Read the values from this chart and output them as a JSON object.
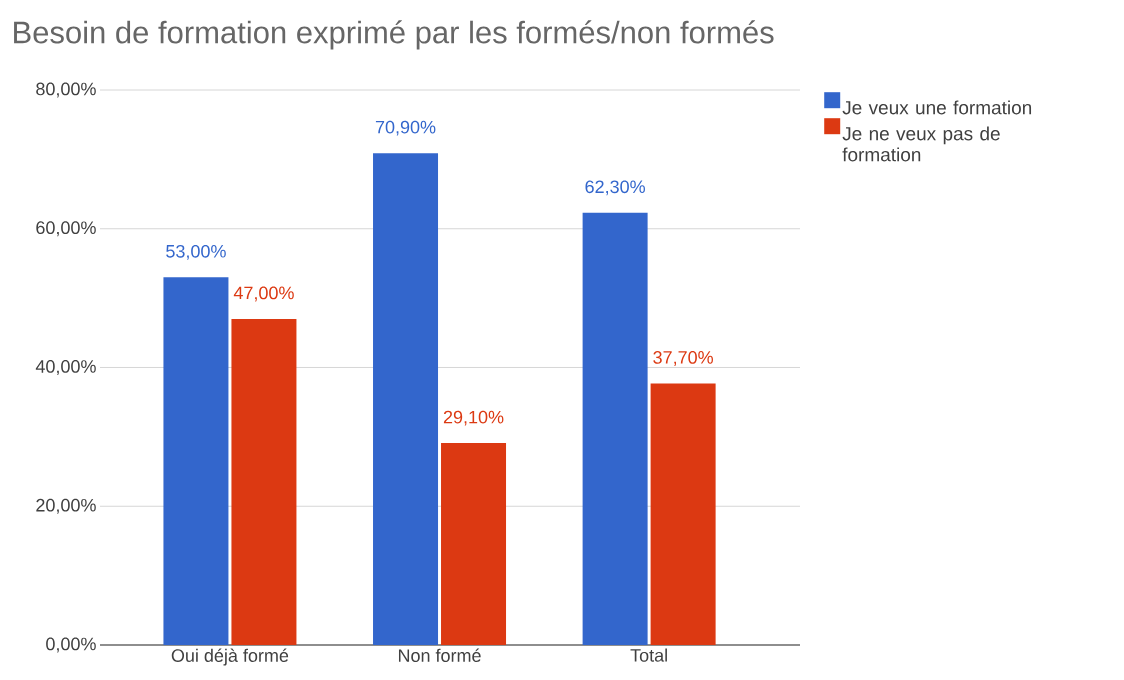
{
  "chart_data": {
    "type": "bar",
    "title": "Besoin de formation exprimé par les formés/non formés",
    "categories": [
      "Oui déjà formé",
      "Non formé",
      "Total"
    ],
    "series": [
      {
        "name": "Je veux une formation",
        "color": "#3366cc",
        "values": [
          53.0,
          70.9,
          62.3
        ],
        "value_labels": [
          "53,00%",
          "70,90%",
          "62,30%"
        ]
      },
      {
        "name": "Je ne veux pas de formation",
        "color": "#dc3912",
        "values": [
          47.0,
          29.1,
          37.7
        ],
        "value_labels": [
          "47,00%",
          "29,10%",
          "37,70%"
        ]
      }
    ],
    "ylim": [
      0,
      80
    ],
    "yticks": [
      {
        "value": 0,
        "label": "0,00%"
      },
      {
        "value": 20,
        "label": "20,00%"
      },
      {
        "value": 40,
        "label": "40,00%"
      },
      {
        "value": 60,
        "label": "60,00%"
      },
      {
        "value": 80,
        "label": "80,00%"
      }
    ],
    "grid": "y",
    "legend": "top right"
  }
}
